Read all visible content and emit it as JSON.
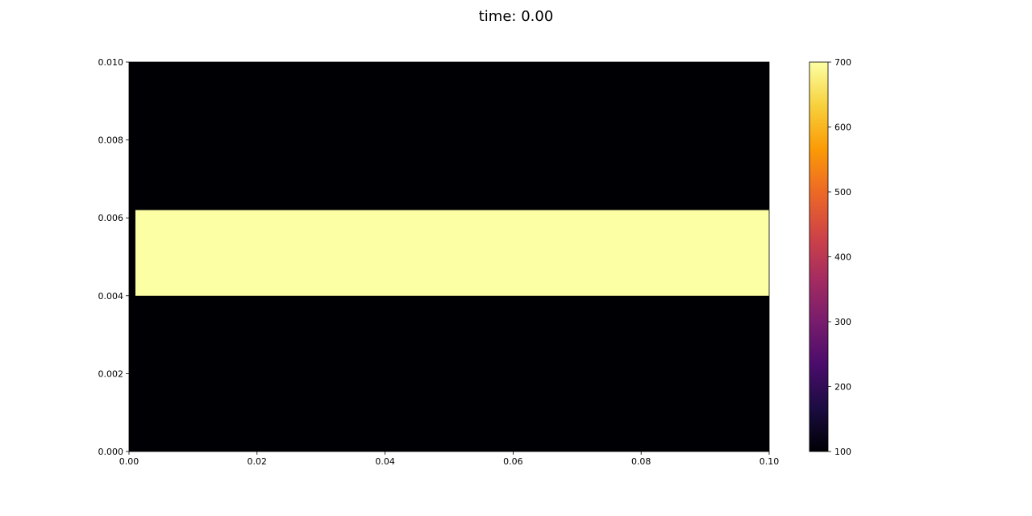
{
  "title": "time: 0.00",
  "chart_data": {
    "type": "heatmap",
    "title": "time: 0.00",
    "xlabel": "",
    "ylabel": "",
    "xlim": [
      0.0,
      0.1
    ],
    "ylim": [
      0.0,
      0.01
    ],
    "x_ticks": [
      "0.00",
      "0.02",
      "0.04",
      "0.06",
      "0.08",
      "0.10"
    ],
    "x_tick_values": [
      0.0,
      0.02,
      0.04,
      0.06,
      0.08,
      0.1
    ],
    "y_ticks": [
      "0.000",
      "0.002",
      "0.004",
      "0.006",
      "0.008",
      "0.010"
    ],
    "y_tick_values": [
      0.0,
      0.002,
      0.004,
      0.006,
      0.008,
      0.01
    ],
    "background_value": 100,
    "regions": [
      {
        "x": [
          0.001,
          0.1
        ],
        "y": [
          0.004,
          0.0062
        ],
        "value": 700
      }
    ],
    "colormap": "inferno",
    "colormap_stops": [
      "#000004",
      "#1b0c41",
      "#4a0c6b",
      "#781c6d",
      "#a52c60",
      "#cf4446",
      "#ed6925",
      "#fb9b06",
      "#f7d13d",
      "#fcffa4"
    ],
    "colorbar": {
      "vmin": 100,
      "vmax": 700,
      "ticks": [
        "100",
        "200",
        "300",
        "400",
        "500",
        "600",
        "700"
      ],
      "tick_values": [
        100,
        200,
        300,
        400,
        500,
        600,
        700
      ]
    }
  }
}
